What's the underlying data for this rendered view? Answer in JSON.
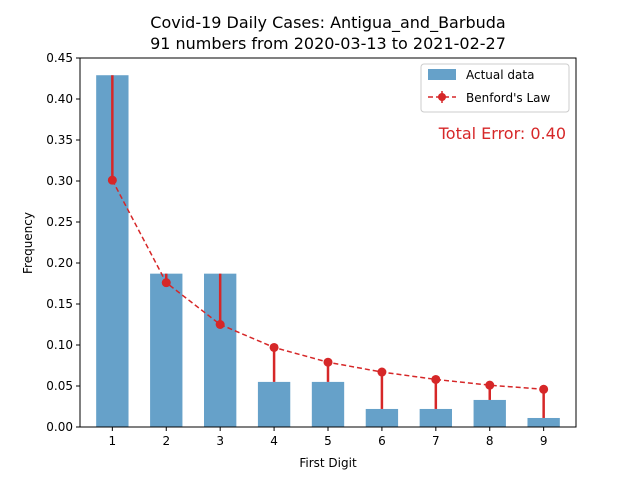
{
  "chart_data": {
    "type": "bar",
    "title": "Covid-19 Daily Cases: Antigua_and_Barbuda",
    "subtitle": "91 numbers from 2020-03-13 to 2021-02-27",
    "xlabel": "First Digit",
    "ylabel": "Frequency",
    "categories": [
      "1",
      "2",
      "3",
      "4",
      "5",
      "6",
      "7",
      "8",
      "9"
    ],
    "ylim": [
      0,
      0.45
    ],
    "yticks": [
      "0.00",
      "0.05",
      "0.10",
      "0.15",
      "0.20",
      "0.25",
      "0.30",
      "0.35",
      "0.40",
      "0.45"
    ],
    "series": [
      {
        "name": "Actual data",
        "kind": "bar",
        "color": "#66a1c9",
        "values": [
          0.429,
          0.187,
          0.187,
          0.055,
          0.055,
          0.022,
          0.022,
          0.033,
          0.011
        ]
      },
      {
        "name": "Benford's Law",
        "kind": "line",
        "style": "dashed",
        "marker": "circle",
        "color": "#d62728",
        "values": [
          0.301,
          0.176,
          0.125,
          0.097,
          0.079,
          0.067,
          0.058,
          0.051,
          0.046
        ]
      }
    ],
    "legend_position": "top-right",
    "annotation": "Total Error: 0.40",
    "annotation_color": "#d62728",
    "grid": false
  }
}
